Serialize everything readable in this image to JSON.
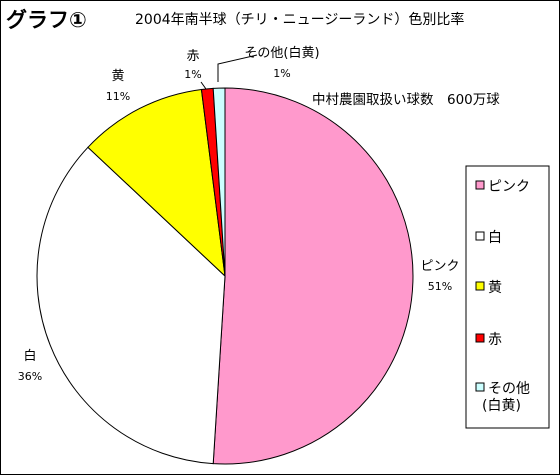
{
  "page_title": "グラフ①",
  "colors": {
    "pink": "#FF99CC",
    "white": "#FFFFFF",
    "yellow": "#FFFF00",
    "red": "#FF0000",
    "light_cyan": "#CCFFFF",
    "outline": "#000000"
  },
  "chart_data": {
    "type": "pie",
    "title": "2004年南半球（チリ・ニュージーランド）色別比率",
    "subtitle": "中村農園取扱い球数　600万球",
    "start_angle_deg": 0,
    "direction": "clockwise",
    "slices": [
      {
        "key": "pink",
        "name": "ピンク",
        "label": "ピンク",
        "pct_label": "51%",
        "value": 51,
        "color": "#FF99CC"
      },
      {
        "key": "white",
        "name": "白",
        "label": "白",
        "pct_label": "36%",
        "value": 36,
        "color": "#FFFFFF"
      },
      {
        "key": "yellow",
        "name": "黄",
        "label": "黄",
        "pct_label": "11%",
        "value": 11,
        "color": "#FFFF00"
      },
      {
        "key": "red",
        "name": "赤",
        "label": "赤",
        "pct_label": "1%",
        "value": 1,
        "color": "#FF0000"
      },
      {
        "key": "other",
        "name": "その他(白黄)",
        "label": "その他(白黄)",
        "pct_label": "1%",
        "value": 1,
        "color": "#CCFFFF"
      }
    ],
    "legend": {
      "placement": "right",
      "entries": [
        {
          "text": "ピンク",
          "color": "#FF99CC"
        },
        {
          "text": "白",
          "color": "#FFFFFF"
        },
        {
          "text": "黄",
          "color": "#FFFF00"
        },
        {
          "text": "赤",
          "color": "#FF0000"
        },
        {
          "text": "その他\n(白黄)",
          "color": "#CCFFFF"
        }
      ]
    }
  }
}
